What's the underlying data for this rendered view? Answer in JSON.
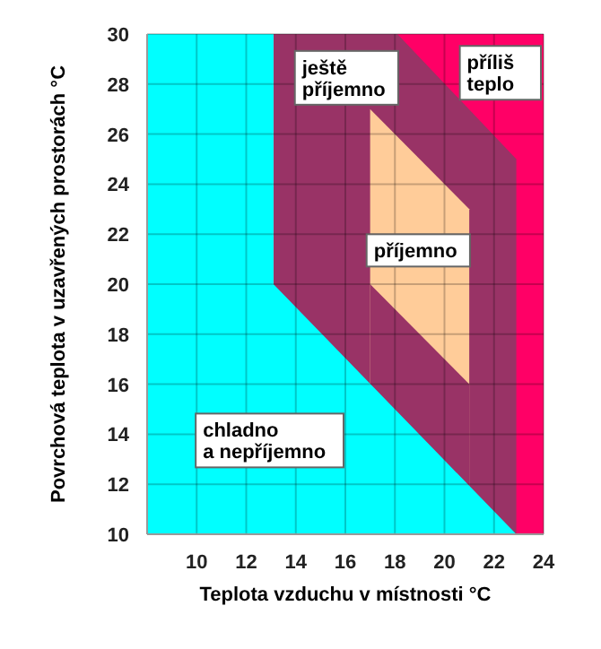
{
  "chart_data": {
    "type": "area",
    "xlabel": "Teplota vzduchu v místnosti °C",
    "ylabel": "Povrchová teplota v uzavřených prostorách °C",
    "xlim": [
      8,
      24
    ],
    "xticks": [
      10,
      12,
      14,
      16,
      18,
      20,
      22,
      24
    ],
    "ylim": [
      10,
      30
    ],
    "yticks": [
      10,
      12,
      14,
      16,
      18,
      20,
      22,
      24,
      26,
      28,
      30
    ],
    "grid": true,
    "legend": false,
    "series": [
      {
        "name": "příliš\nteplo",
        "color": "#ff0066",
        "x": [
          18.1,
          24
        ],
        "values": [
          30,
          30
        ]
      },
      {
        "name": "ještě\npříjemno",
        "color": "#993366",
        "x": [
          13.1,
          18.1,
          22.9
        ],
        "values": [
          30,
          30,
          25
        ]
      },
      {
        "name": "příjemno",
        "color": "#ffcc99",
        "x": [
          17,
          21
        ],
        "values": [
          27,
          23
        ]
      },
      {
        "color": "#993366",
        "x": [
          17,
          21
        ],
        "values": [
          20,
          16
        ]
      },
      {
        "name": "chladno\na nepříjemno",
        "color": "#00ffff",
        "x": [
          8,
          13.1,
          13.1,
          22.9
        ],
        "values": [
          30,
          30,
          20,
          10
        ]
      }
    ]
  }
}
